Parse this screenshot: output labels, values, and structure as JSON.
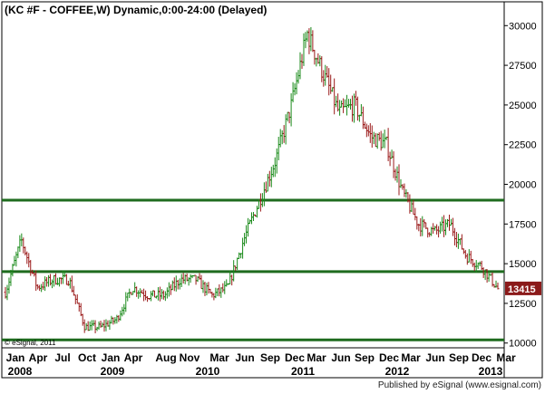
{
  "chart_data": {
    "type": "ohlc-bar",
    "title": "(KC #F - COFFEE,W) Dynamic,0:00-24:00 (Delayed)",
    "y_ticks": [
      10000,
      12500,
      15000,
      17500,
      20000,
      22500,
      25000,
      27500,
      30000
    ],
    "ylim": [
      9700,
      31500
    ],
    "x_month_labels": [
      "Jan",
      "Apr",
      "Jul",
      "Oct",
      "Jan",
      "Apr",
      "Aug",
      "Nov",
      "Mar",
      "Jun",
      "Sep",
      "Dec",
      "Mar",
      "Jun",
      "Sep",
      "Dec",
      "Mar",
      "Jun",
      "Sep",
      "Dec",
      "Mar"
    ],
    "x_year_labels": [
      "2008",
      "2009",
      "2010",
      "2011",
      "2012",
      "2013"
    ],
    "horizontal_lines": [
      19000,
      14500,
      10200
    ],
    "last_price_label": "13415",
    "last_price": 13415,
    "watermark": "© eSignal, 2011",
    "series": [
      {
        "x": [
          "2008-01",
          "2008-03",
          "2008-05",
          "2008-07",
          "2008-09",
          "2008-11",
          "2009-01",
          "2009-03",
          "2009-05",
          "2009-07",
          "2009-09",
          "2009-11",
          "2010-01",
          "2010-03",
          "2010-05",
          "2010-07",
          "2010-09",
          "2010-11",
          "2011-01",
          "2011-03",
          "2011-05",
          "2011-07",
          "2011-09",
          "2011-11",
          "2012-01",
          "2012-03",
          "2012-05",
          "2012-07",
          "2012-09",
          "2012-11",
          "2013-01",
          "2013-02"
        ],
        "values": [
          13200,
          16500,
          13500,
          14000,
          14000,
          11000,
          11000,
          11500,
          13500,
          13000,
          13000,
          14000,
          14000,
          13000,
          13500,
          16500,
          19000,
          21500,
          25000,
          29500,
          27000,
          24500,
          25000,
          23000,
          22500,
          19500,
          17500,
          17000,
          17500,
          15500,
          14800,
          13415
        ]
      }
    ],
    "colors": {
      "up": "#1a8a1a",
      "down": "#9b1b1b",
      "levels": "#1e6b1e",
      "price_tag": "#8b1a1a"
    }
  },
  "footer": {
    "text": "Published by eSignal (www.esignal.com)"
  }
}
